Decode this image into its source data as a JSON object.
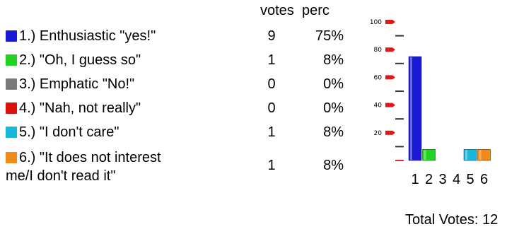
{
  "table": {
    "header_votes": "votes",
    "header_perc": "perc",
    "rows": [
      {
        "label": "1.)  Enthusiastic \"yes!\"",
        "votes": "9",
        "perc": "75%",
        "color": "#1a1ad6"
      },
      {
        "label": "2.)  \"Oh, I guess so\"",
        "votes": "1",
        "perc": "8%",
        "color": "#22d422"
      },
      {
        "label": "3.)  Emphatic \"No!\"",
        "votes": "0",
        "perc": "0%",
        "color": "#7a7a7a"
      },
      {
        "label": "4.)  \"Nah, not really\"",
        "votes": "0",
        "perc": "0%",
        "color": "#dd1010"
      },
      {
        "label": "5.)  \"I don't care\"",
        "votes": "1",
        "perc": "8%",
        "color": "#18b8dc"
      },
      {
        "label_line1": "6.)  \"It does not interest",
        "label_line2": "me/I don't read it\"",
        "votes": "1",
        "perc": "8%",
        "color": "#f08a18"
      }
    ]
  },
  "chart_data": {
    "type": "bar",
    "categories": [
      "1",
      "2",
      "3",
      "4",
      "5",
      "6"
    ],
    "values": [
      75,
      8,
      0,
      0,
      8,
      8
    ],
    "ylim": [
      0,
      100
    ],
    "yticks": [
      "20",
      "40",
      "60",
      "80",
      "100"
    ],
    "colors": [
      "#1a1ad6",
      "#22d422",
      "#7a7a7a",
      "#dd1010",
      "#18b8dc",
      "#f08a18"
    ]
  },
  "footer": {
    "total_label": "Total Votes:",
    "total_value": "12"
  }
}
